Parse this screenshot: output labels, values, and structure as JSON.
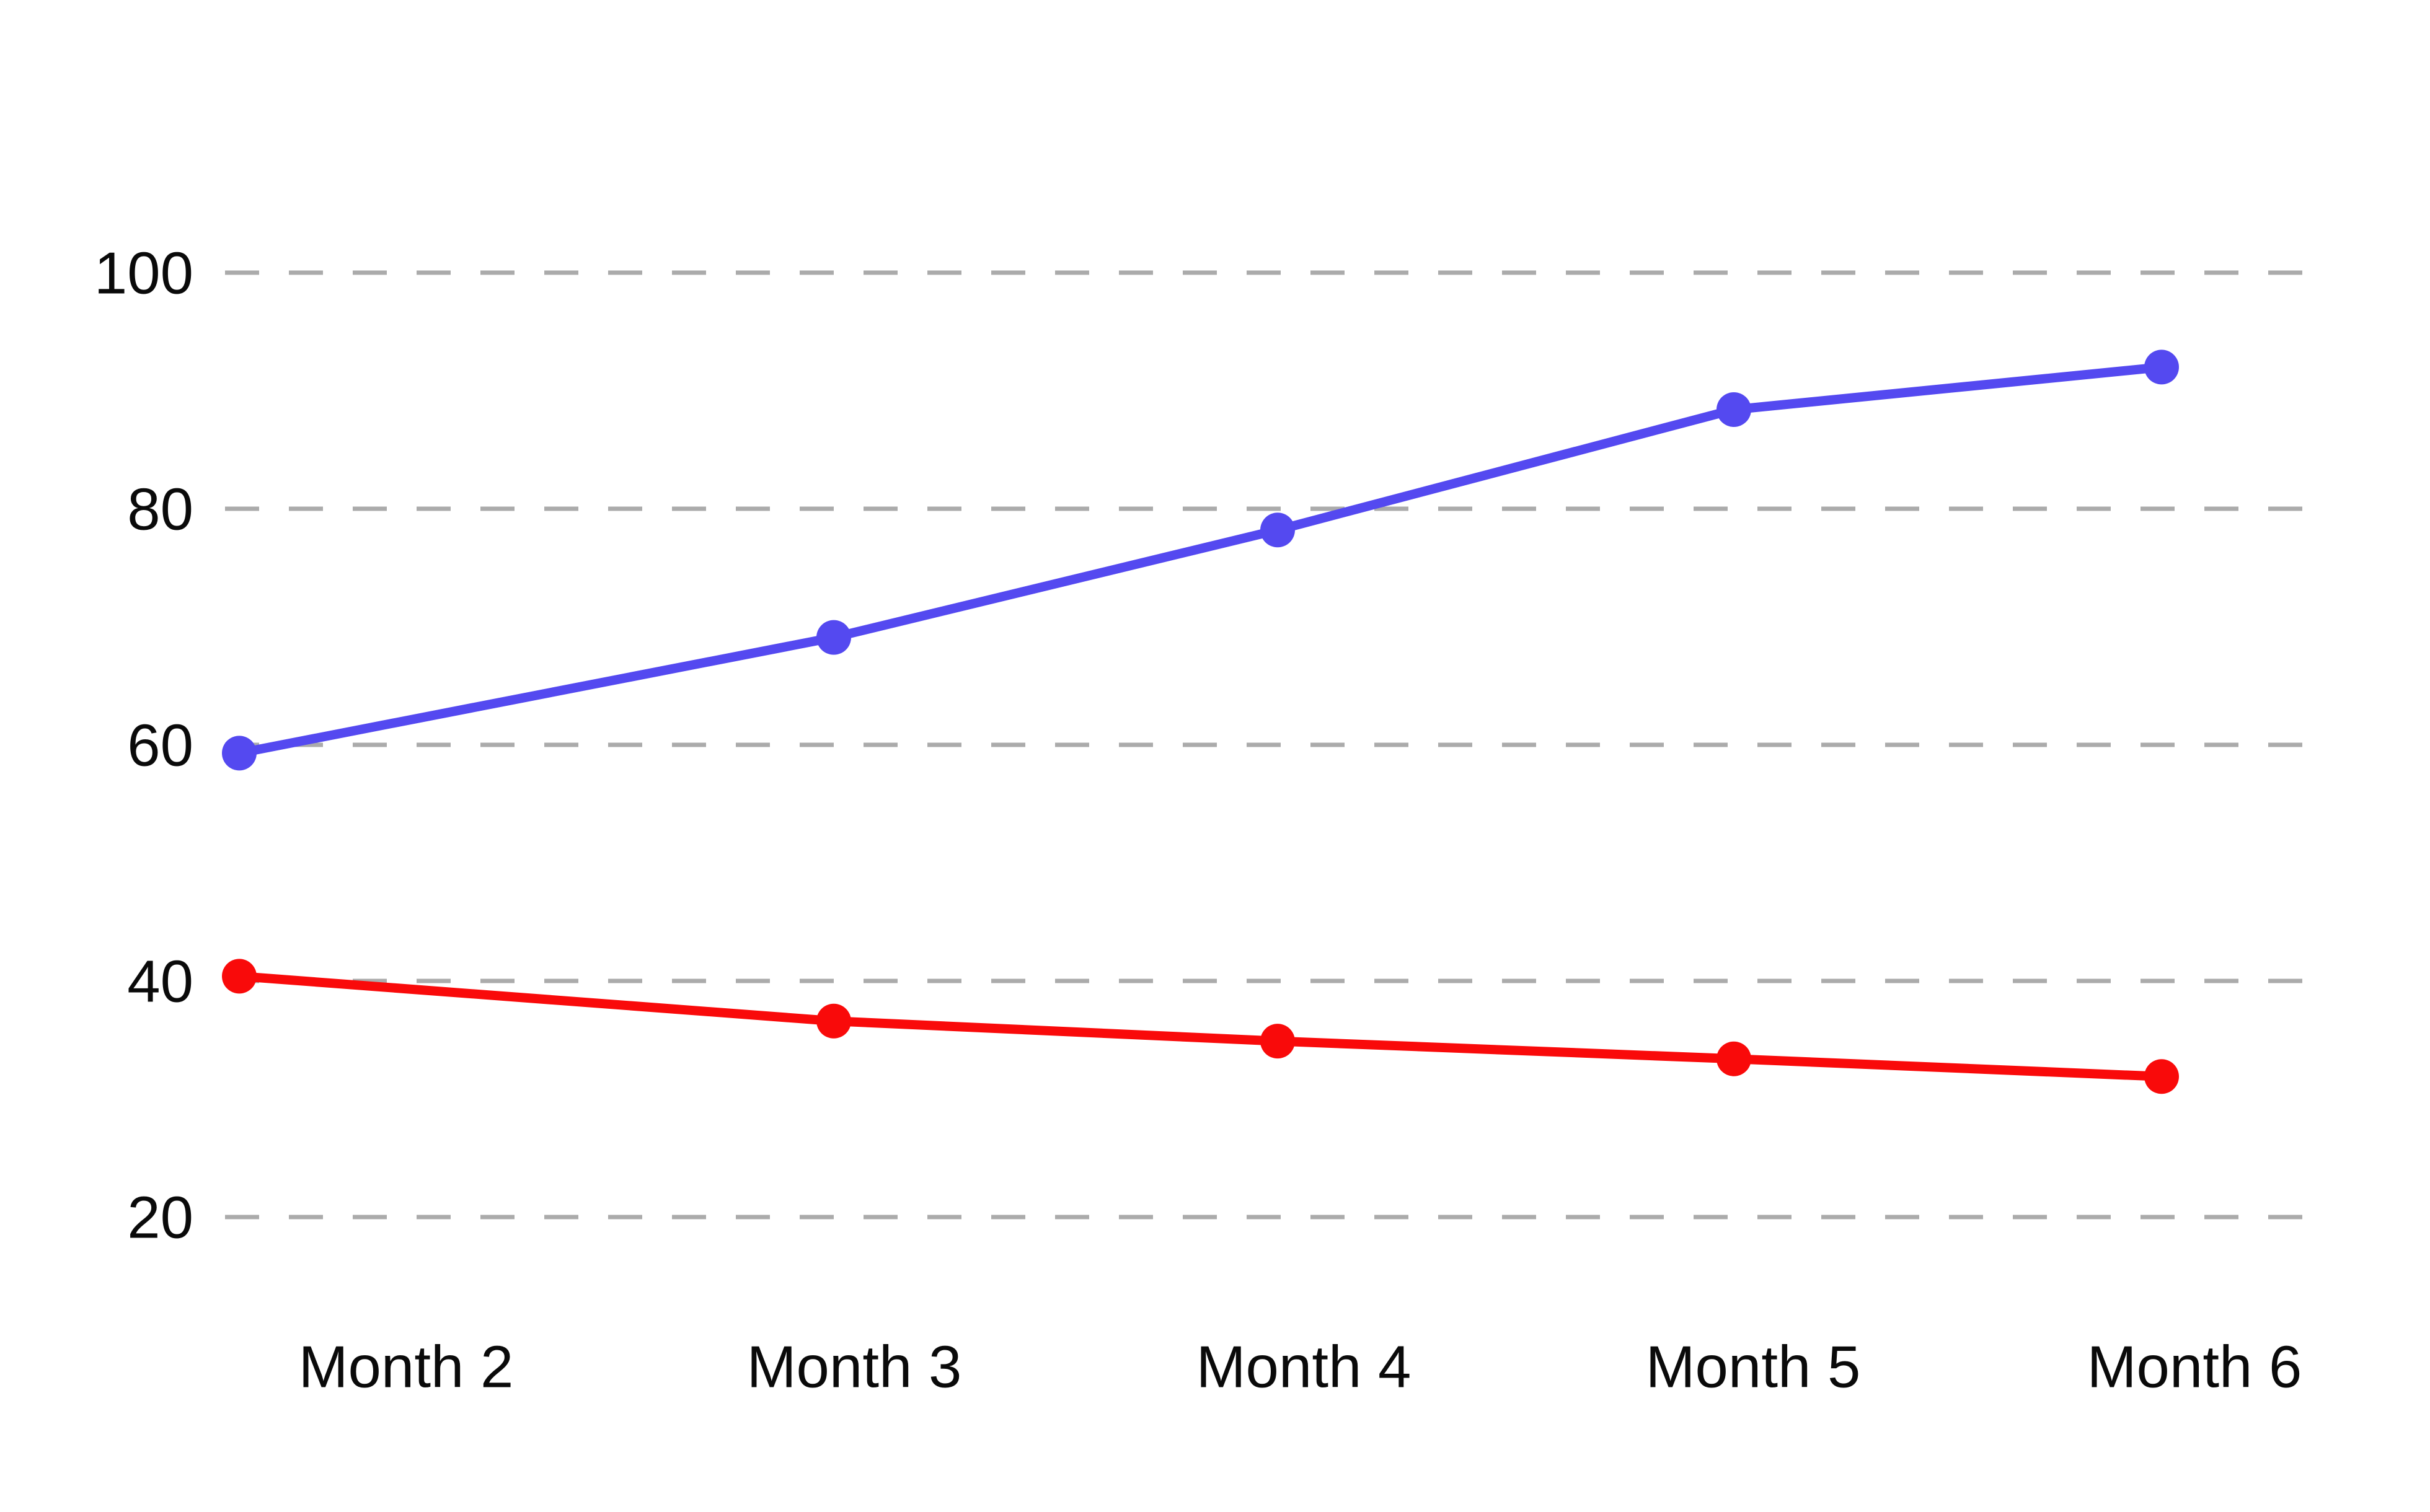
{
  "chart_data": {
    "type": "line",
    "title": "",
    "xlabel": "",
    "ylabel": "",
    "categories": [
      "Month 2",
      "Month 3",
      "Month 4",
      "Month 5",
      "Month 6"
    ],
    "series": [
      {
        "name": "blue",
        "color": "#5449F0",
        "values": [
          59.3,
          69.1,
          78.2,
          88.4,
          92.0
        ]
      },
      {
        "name": "red",
        "color": "#F90A0A",
        "values": [
          40.4,
          36.6,
          34.9,
          33.4,
          31.9
        ]
      }
    ],
    "yticks": [
      100,
      80,
      60,
      40,
      20
    ],
    "ylim": [
      20,
      100
    ],
    "grid": "horizontal-dashed",
    "legend": "none",
    "markers": "filled-circle"
  },
  "colors": {
    "background": "#FFFFFF",
    "gridline": "#ABABAB",
    "tick_text": "#0A0A0A"
  }
}
